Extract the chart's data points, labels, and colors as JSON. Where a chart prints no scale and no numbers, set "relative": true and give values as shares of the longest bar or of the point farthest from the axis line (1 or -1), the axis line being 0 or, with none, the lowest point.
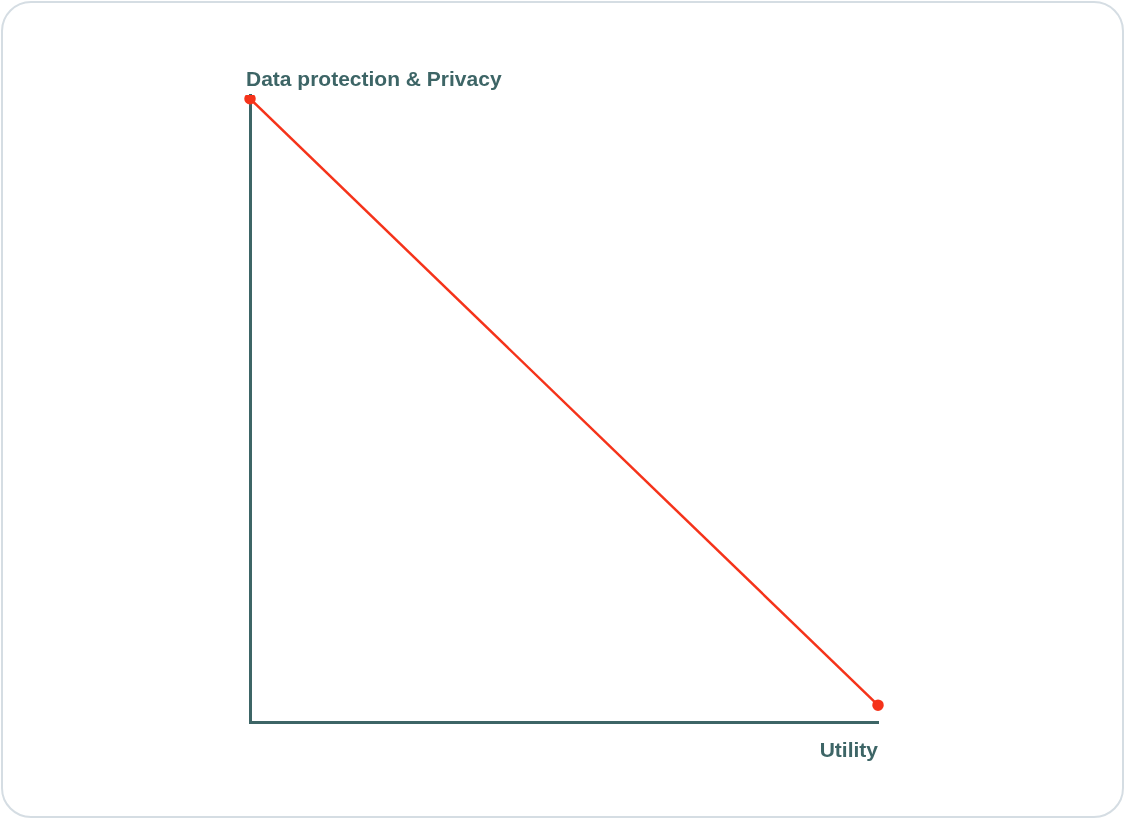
{
  "chart_data": {
    "type": "line",
    "xlabel": "Utility",
    "ylabel": "Data protection & Privacy",
    "relative": true,
    "categories": [
      null,
      null
    ],
    "series": [
      {
        "color": "#f5331a",
        "values": [
          1,
          0.027
        ]
      }
    ],
    "marker": "circle",
    "line_style": "solid",
    "grid": false,
    "legend": false,
    "tick_labels": false
  }
}
